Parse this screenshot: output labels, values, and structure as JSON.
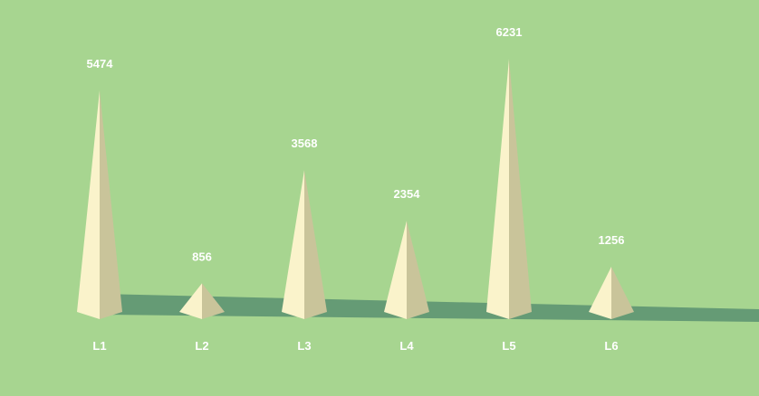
{
  "chart_data": {
    "type": "bar",
    "mark_shape": "pyramid",
    "categories": [
      "L1",
      "L2",
      "L3",
      "L4",
      "L5",
      "L6"
    ],
    "values": [
      5474,
      856,
      3568,
      2354,
      6231,
      1256
    ],
    "title": "",
    "xlabel": "",
    "ylabel": "",
    "ylim": [
      0,
      6231
    ],
    "grid": false,
    "legend": "none",
    "show_value_labels": true
  },
  "colors": {
    "background": "#a7d590",
    "floor_shadow": "#659b75",
    "pyramid_light_face": "#faf3cb",
    "pyramid_dark_face": "#c9c49a",
    "label_text": "#ffffff"
  }
}
